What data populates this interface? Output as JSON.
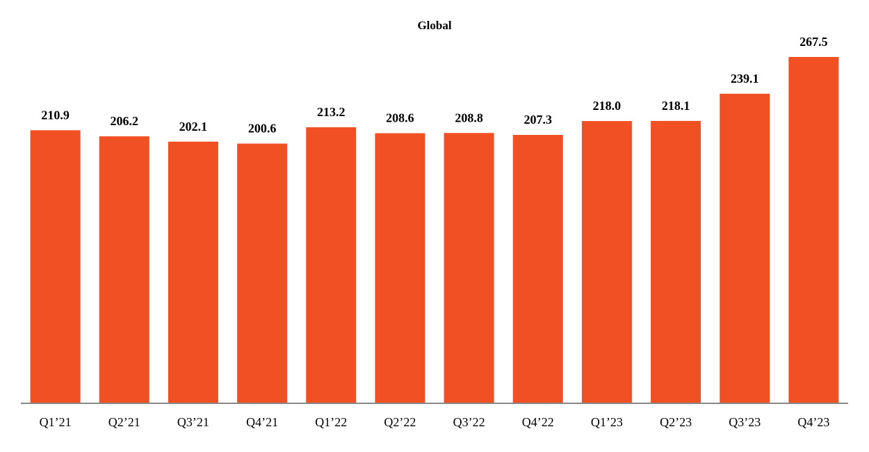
{
  "chart_data": {
    "type": "bar",
    "title": "Global",
    "categories": [
      "Q1’21",
      "Q2’21",
      "Q3’21",
      "Q4’21",
      "Q1’22",
      "Q2’22",
      "Q3’22",
      "Q4’22",
      "Q1’23",
      "Q2’23",
      "Q3’23",
      "Q4’23"
    ],
    "values": [
      210.9,
      206.2,
      202.1,
      200.6,
      213.2,
      208.6,
      208.8,
      207.3,
      218.0,
      218.1,
      239.1,
      267.5
    ],
    "value_labels": [
      "210.9",
      "206.2",
      "202.1",
      "200.6",
      "213.2",
      "208.6",
      "208.8",
      "207.3",
      "218.0",
      "218.1",
      "239.1",
      "267.5"
    ],
    "color": "#f15025",
    "ylim": [
      0,
      280
    ]
  }
}
